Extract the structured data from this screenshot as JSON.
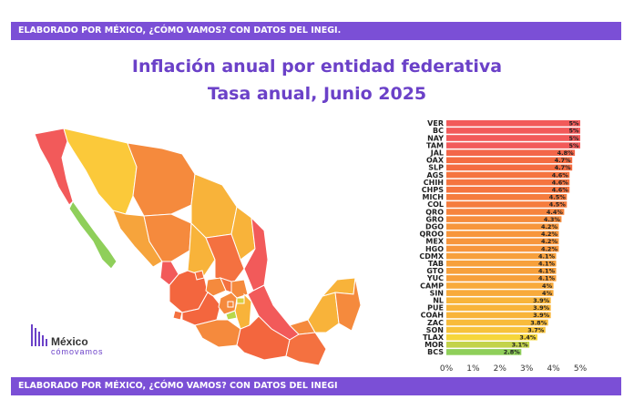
{
  "header": {
    "banner_text": "ELABORADO POR MÉXICO, ¿CÓMO VAMOS? CON DATOS DEL INEGI."
  },
  "footer": {
    "banner_text": "ELABORADO POR MÉXICO, ¿CÓMO VAMOS? CON DATOS DEL INEGI"
  },
  "logo": {
    "line1": "México",
    "line2": "cómovamos"
  },
  "colors": {
    "banner": "#7b4fd6",
    "title": "#6b41c8",
    "high": "#f25a5a",
    "mid": "#f39a3c",
    "low": "#8fcf5a"
  },
  "chart_data": {
    "type": "bar",
    "orientation": "horizontal",
    "title": "Inflación anual por entidad federativa",
    "subtitle": "Tasa anual, Junio 2025",
    "categories": [
      "VER",
      "BC",
      "NAY",
      "TAM",
      "JAL",
      "OAX",
      "SLP",
      "AGS",
      "CHIH",
      "CHPS",
      "MICH",
      "COL",
      "QRO",
      "GRO",
      "DGO",
      "QROO",
      "MEX",
      "HGO",
      "CDMX",
      "TAB",
      "GTO",
      "YUC",
      "CAMP",
      "SIN",
      "NL",
      "PUE",
      "COAH",
      "ZAC",
      "SON",
      "TLAX",
      "MOR",
      "BCS"
    ],
    "values": [
      5.0,
      5.0,
      5.0,
      5.0,
      4.8,
      4.7,
      4.7,
      4.6,
      4.6,
      4.6,
      4.5,
      4.5,
      4.4,
      4.3,
      4.2,
      4.2,
      4.2,
      4.2,
      4.1,
      4.1,
      4.1,
      4.1,
      4.0,
      4.0,
      3.9,
      3.9,
      3.9,
      3.8,
      3.7,
      3.4,
      3.1,
      2.8
    ],
    "value_labels": [
      "5%",
      "5%",
      "5%",
      "5%",
      "4.8%",
      "4.7%",
      "4.7%",
      "4.6%",
      "4.6%",
      "4.6%",
      "4.5%",
      "4.5%",
      "4.4%",
      "4.3%",
      "4.2%",
      "4.2%",
      "4.2%",
      "4.2%",
      "4.1%",
      "4.1%",
      "4.1%",
      "4.1%",
      "4%",
      "4%",
      "3.9%",
      "3.9%",
      "3.9%",
      "3.8%",
      "3.7%",
      "3.4%",
      "3.1%",
      "2.8%"
    ],
    "x_ticks": [
      "0%",
      "1%",
      "2%",
      "3%",
      "4%",
      "5%"
    ],
    "xlim": [
      0,
      5
    ],
    "grid": false
  }
}
